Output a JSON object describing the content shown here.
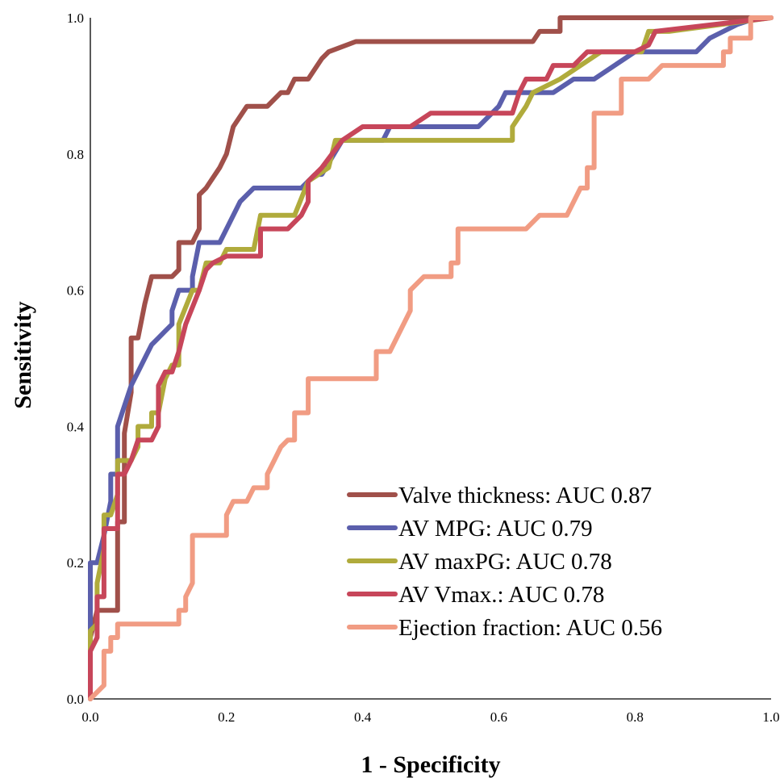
{
  "chart_data": {
    "type": "line",
    "title": "",
    "xlabel": "1 - Specificity",
    "ylabel": "Sensitivity",
    "xlim": [
      0,
      1
    ],
    "ylim": [
      0,
      1
    ],
    "x_ticks": [
      "0.0",
      "0.2",
      "0.4",
      "0.6",
      "0.8",
      "1.0"
    ],
    "y_ticks": [
      "0.0",
      "0.2",
      "0.4",
      "0.6",
      "0.8",
      "1.0"
    ],
    "grid": false,
    "legend_position": "bottom-right",
    "series": [
      {
        "name": "Valve thickness: AUC 0.87",
        "color": "#a0504a",
        "points": [
          [
            0,
            0
          ],
          [
            0,
            0.09
          ],
          [
            0.01,
            0.13
          ],
          [
            0.02,
            0.13
          ],
          [
            0.04,
            0.13
          ],
          [
            0.04,
            0.26
          ],
          [
            0.05,
            0.26
          ],
          [
            0.05,
            0.39
          ],
          [
            0.06,
            0.45
          ],
          [
            0.06,
            0.53
          ],
          [
            0.07,
            0.53
          ],
          [
            0.08,
            0.58
          ],
          [
            0.09,
            0.62
          ],
          [
            0.12,
            0.62
          ],
          [
            0.13,
            0.63
          ],
          [
            0.13,
            0.67
          ],
          [
            0.15,
            0.67
          ],
          [
            0.16,
            0.69
          ],
          [
            0.16,
            0.74
          ],
          [
            0.17,
            0.75
          ],
          [
            0.19,
            0.78
          ],
          [
            0.2,
            0.8
          ],
          [
            0.21,
            0.84
          ],
          [
            0.23,
            0.87
          ],
          [
            0.26,
            0.87
          ],
          [
            0.28,
            0.89
          ],
          [
            0.29,
            0.89
          ],
          [
            0.3,
            0.91
          ],
          [
            0.32,
            0.91
          ],
          [
            0.34,
            0.94
          ],
          [
            0.35,
            0.95
          ],
          [
            0.39,
            0.965
          ],
          [
            0.65,
            0.965
          ],
          [
            0.66,
            0.98
          ],
          [
            0.69,
            0.98
          ],
          [
            0.69,
            1.0
          ],
          [
            1.0,
            1.0
          ]
        ]
      },
      {
        "name": "AV MPG: AUC 0.79",
        "color": "#5b5fac",
        "points": [
          [
            0,
            0
          ],
          [
            0,
            0.12
          ],
          [
            0,
            0.2
          ],
          [
            0.01,
            0.2
          ],
          [
            0.02,
            0.24
          ],
          [
            0.03,
            0.29
          ],
          [
            0.03,
            0.33
          ],
          [
            0.04,
            0.33
          ],
          [
            0.04,
            0.4
          ],
          [
            0.05,
            0.43
          ],
          [
            0.06,
            0.46
          ],
          [
            0.07,
            0.48
          ],
          [
            0.08,
            0.5
          ],
          [
            0.09,
            0.52
          ],
          [
            0.1,
            0.53
          ],
          [
            0.11,
            0.54
          ],
          [
            0.12,
            0.55
          ],
          [
            0.12,
            0.57
          ],
          [
            0.13,
            0.6
          ],
          [
            0.15,
            0.6
          ],
          [
            0.15,
            0.62
          ],
          [
            0.16,
            0.67
          ],
          [
            0.19,
            0.67
          ],
          [
            0.22,
            0.73
          ],
          [
            0.24,
            0.75
          ],
          [
            0.31,
            0.75
          ],
          [
            0.33,
            0.77
          ],
          [
            0.34,
            0.77
          ],
          [
            0.37,
            0.82
          ],
          [
            0.43,
            0.82
          ],
          [
            0.44,
            0.84
          ],
          [
            0.57,
            0.84
          ],
          [
            0.6,
            0.87
          ],
          [
            0.61,
            0.89
          ],
          [
            0.68,
            0.89
          ],
          [
            0.71,
            0.91
          ],
          [
            0.74,
            0.91
          ],
          [
            0.77,
            0.93
          ],
          [
            0.8,
            0.95
          ],
          [
            0.89,
            0.95
          ],
          [
            0.91,
            0.97
          ],
          [
            0.95,
            0.99
          ],
          [
            0.98,
            1.0
          ],
          [
            1.0,
            1.0
          ]
        ]
      },
      {
        "name": "AV maxPG: AUC 0.78",
        "color": "#b0ab3c",
        "points": [
          [
            0,
            0
          ],
          [
            0,
            0.1
          ],
          [
            0.01,
            0.11
          ],
          [
            0.01,
            0.17
          ],
          [
            0.02,
            0.22
          ],
          [
            0.02,
            0.27
          ],
          [
            0.03,
            0.27
          ],
          [
            0.04,
            0.3
          ],
          [
            0.04,
            0.35
          ],
          [
            0.06,
            0.35
          ],
          [
            0.07,
            0.37
          ],
          [
            0.07,
            0.4
          ],
          [
            0.09,
            0.4
          ],
          [
            0.09,
            0.42
          ],
          [
            0.1,
            0.42
          ],
          [
            0.11,
            0.47
          ],
          [
            0.12,
            0.49
          ],
          [
            0.13,
            0.49
          ],
          [
            0.13,
            0.55
          ],
          [
            0.15,
            0.6
          ],
          [
            0.16,
            0.6
          ],
          [
            0.17,
            0.64
          ],
          [
            0.19,
            0.64
          ],
          [
            0.2,
            0.66
          ],
          [
            0.24,
            0.66
          ],
          [
            0.25,
            0.71
          ],
          [
            0.3,
            0.71
          ],
          [
            0.32,
            0.76
          ],
          [
            0.35,
            0.78
          ],
          [
            0.36,
            0.82
          ],
          [
            0.62,
            0.82
          ],
          [
            0.62,
            0.84
          ],
          [
            0.64,
            0.87
          ],
          [
            0.65,
            0.89
          ],
          [
            0.69,
            0.91
          ],
          [
            0.72,
            0.93
          ],
          [
            0.75,
            0.95
          ],
          [
            0.81,
            0.95
          ],
          [
            0.82,
            0.98
          ],
          [
            0.85,
            0.98
          ],
          [
            1.0,
            1.0
          ]
        ]
      },
      {
        "name": "AV Vmax.: AUC 0.78",
        "color": "#c7465a",
        "points": [
          [
            0,
            0
          ],
          [
            0,
            0.07
          ],
          [
            0.01,
            0.09
          ],
          [
            0.01,
            0.15
          ],
          [
            0.02,
            0.15
          ],
          [
            0.02,
            0.25
          ],
          [
            0.03,
            0.25
          ],
          [
            0.04,
            0.25
          ],
          [
            0.04,
            0.33
          ],
          [
            0.05,
            0.33
          ],
          [
            0.06,
            0.35
          ],
          [
            0.07,
            0.38
          ],
          [
            0.09,
            0.38
          ],
          [
            0.1,
            0.4
          ],
          [
            0.1,
            0.46
          ],
          [
            0.11,
            0.48
          ],
          [
            0.12,
            0.48
          ],
          [
            0.13,
            0.51
          ],
          [
            0.14,
            0.55
          ],
          [
            0.16,
            0.6
          ],
          [
            0.17,
            0.63
          ],
          [
            0.18,
            0.64
          ],
          [
            0.2,
            0.65
          ],
          [
            0.25,
            0.65
          ],
          [
            0.25,
            0.69
          ],
          [
            0.29,
            0.69
          ],
          [
            0.31,
            0.71
          ],
          [
            0.32,
            0.73
          ],
          [
            0.32,
            0.76
          ],
          [
            0.34,
            0.78
          ],
          [
            0.37,
            0.82
          ],
          [
            0.4,
            0.84
          ],
          [
            0.47,
            0.84
          ],
          [
            0.5,
            0.86
          ],
          [
            0.62,
            0.86
          ],
          [
            0.63,
            0.89
          ],
          [
            0.64,
            0.91
          ],
          [
            0.67,
            0.91
          ],
          [
            0.68,
            0.93
          ],
          [
            0.71,
            0.93
          ],
          [
            0.73,
            0.95
          ],
          [
            0.8,
            0.95
          ],
          [
            0.82,
            0.96
          ],
          [
            0.83,
            0.98
          ],
          [
            1.0,
            1.0
          ]
        ]
      },
      {
        "name": "Ejection fraction: AUC 0.56",
        "color": "#f19c83",
        "points": [
          [
            0,
            0
          ],
          [
            0.01,
            0.01
          ],
          [
            0.02,
            0.02
          ],
          [
            0.02,
            0.07
          ],
          [
            0.03,
            0.07
          ],
          [
            0.03,
            0.09
          ],
          [
            0.04,
            0.09
          ],
          [
            0.04,
            0.11
          ],
          [
            0.13,
            0.11
          ],
          [
            0.13,
            0.13
          ],
          [
            0.14,
            0.13
          ],
          [
            0.14,
            0.15
          ],
          [
            0.15,
            0.17
          ],
          [
            0.15,
            0.24
          ],
          [
            0.2,
            0.24
          ],
          [
            0.2,
            0.27
          ],
          [
            0.21,
            0.29
          ],
          [
            0.23,
            0.29
          ],
          [
            0.24,
            0.31
          ],
          [
            0.26,
            0.31
          ],
          [
            0.26,
            0.33
          ],
          [
            0.27,
            0.35
          ],
          [
            0.28,
            0.37
          ],
          [
            0.29,
            0.38
          ],
          [
            0.3,
            0.38
          ],
          [
            0.3,
            0.42
          ],
          [
            0.32,
            0.42
          ],
          [
            0.32,
            0.47
          ],
          [
            0.42,
            0.47
          ],
          [
            0.42,
            0.51
          ],
          [
            0.44,
            0.51
          ],
          [
            0.47,
            0.57
          ],
          [
            0.47,
            0.6
          ],
          [
            0.49,
            0.62
          ],
          [
            0.53,
            0.62
          ],
          [
            0.53,
            0.64
          ],
          [
            0.54,
            0.64
          ],
          [
            0.54,
            0.69
          ],
          [
            0.64,
            0.69
          ],
          [
            0.66,
            0.71
          ],
          [
            0.7,
            0.71
          ],
          [
            0.72,
            0.75
          ],
          [
            0.73,
            0.75
          ],
          [
            0.73,
            0.78
          ],
          [
            0.74,
            0.78
          ],
          [
            0.74,
            0.86
          ],
          [
            0.78,
            0.86
          ],
          [
            0.78,
            0.91
          ],
          [
            0.82,
            0.91
          ],
          [
            0.84,
            0.93
          ],
          [
            0.93,
            0.93
          ],
          [
            0.93,
            0.95
          ],
          [
            0.94,
            0.95
          ],
          [
            0.94,
            0.97
          ],
          [
            0.97,
            0.97
          ],
          [
            0.97,
            1.0
          ],
          [
            1.0,
            1.0
          ]
        ]
      }
    ]
  }
}
